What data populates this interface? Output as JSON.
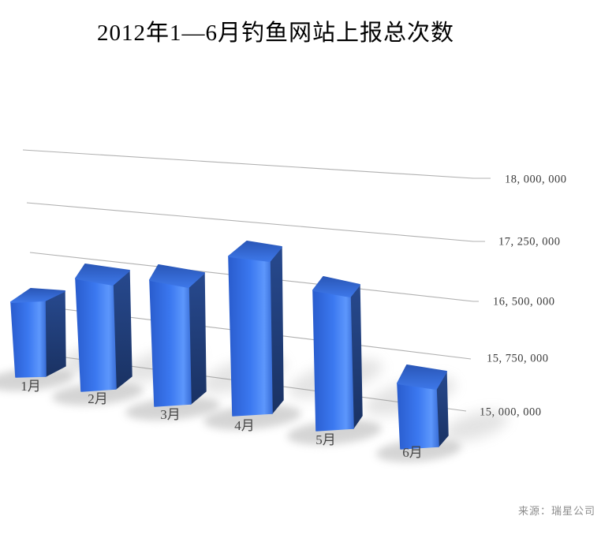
{
  "title": "2012年1—6月钓鱼网站上报总次数",
  "source": "来源：瑞星公司",
  "chart_data": {
    "type": "bar",
    "style": "3d-perspective-columns",
    "title": "2012年1—6月钓鱼网站上报总次数",
    "categories": [
      "1月",
      "2月",
      "3月",
      "4月",
      "5月",
      "6月"
    ],
    "values": [
      16000000,
      16450000,
      16550000,
      16950000,
      16600000,
      15550000
    ],
    "series_name": "钓鱼网站上报总次数",
    "xlabel": "",
    "ylabel": "",
    "value_axis": {
      "side": "right",
      "tick_values": [
        18000000,
        17250000,
        16500000,
        15750000,
        15000000
      ],
      "tick_labels": [
        "18, 000, 000",
        "17, 250, 000",
        "16, 500, 000",
        "15, 750, 000",
        "15, 000, 000"
      ],
      "step": 750000,
      "ylim": [
        14250000,
        18000000
      ]
    },
    "grid": true,
    "legend": false,
    "source": "来源：瑞星公司",
    "colors": {
      "bar_front": "#3b78f0",
      "bar_front_dark": "#2a5dce",
      "bar_front_light": "#5d97fc",
      "bar_side": "#1e3c76",
      "bar_top_back": "#2a57b8",
      "bar_top_front": "#3d77e8",
      "gridline": "#b0b0b0",
      "tick_label": "#3a3a3a",
      "category_label": "#454545",
      "source_text": "#8c8c8c",
      "shadow": "#969696",
      "background": "#ffffff"
    }
  }
}
